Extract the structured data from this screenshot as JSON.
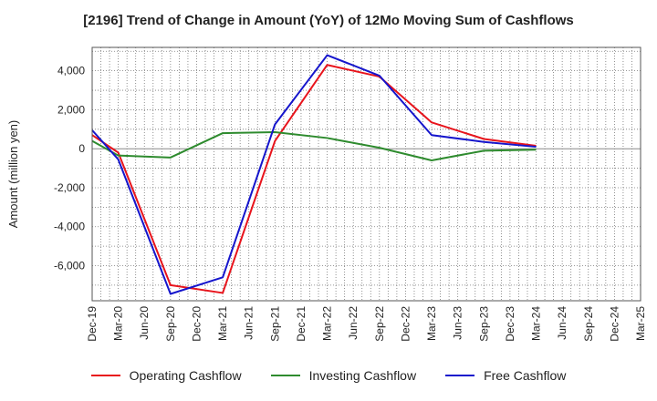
{
  "chart_data": {
    "type": "line",
    "title": "[2196]  Trend of Change in Amount (YoY) of 12Mo Moving Sum of Cashflows",
    "xlabel": "",
    "ylabel": "Amount (million yen)",
    "ylim": [
      -7800,
      5200
    ],
    "yticks": [
      4000,
      2000,
      0,
      -2000,
      -4000,
      -6000
    ],
    "ytick_labels": [
      "4,000",
      "2,000",
      "0",
      "-2,000",
      "-4,000",
      "-6,000"
    ],
    "grid": true,
    "legend_position": "bottom",
    "categories": [
      "Dec-19",
      "Mar-20",
      "Jun-20",
      "Sep-20",
      "Dec-20",
      "Mar-21",
      "Jun-21",
      "Sep-21",
      "Dec-21",
      "Mar-22",
      "Jun-22",
      "Sep-22",
      "Dec-22",
      "Mar-23",
      "Jun-23",
      "Sep-23",
      "Dec-23",
      "Mar-24",
      "Jun-24",
      "Sep-24",
      "Dec-24",
      "Mar-25"
    ],
    "series": [
      {
        "name": "Operating Cashflow",
        "color": "#e8141c",
        "values": [
          700,
          -200,
          null,
          -7000,
          null,
          -7400,
          null,
          400,
          null,
          4300,
          null,
          3700,
          null,
          1350,
          null,
          500,
          null,
          150,
          null,
          null,
          null,
          null
        ]
      },
      {
        "name": "Investing Cashflow",
        "color": "#2e8b2e",
        "values": [
          400,
          -350,
          null,
          -450,
          null,
          800,
          null,
          850,
          null,
          550,
          null,
          50,
          null,
          -600,
          null,
          -100,
          null,
          -50,
          null,
          null,
          null,
          null
        ]
      },
      {
        "name": "Free Cashflow",
        "color": "#1515cc",
        "values": [
          950,
          -550,
          null,
          -7450,
          null,
          -6600,
          null,
          1250,
          null,
          4800,
          null,
          3750,
          null,
          700,
          null,
          350,
          null,
          100,
          null,
          null,
          null,
          null
        ]
      }
    ]
  }
}
